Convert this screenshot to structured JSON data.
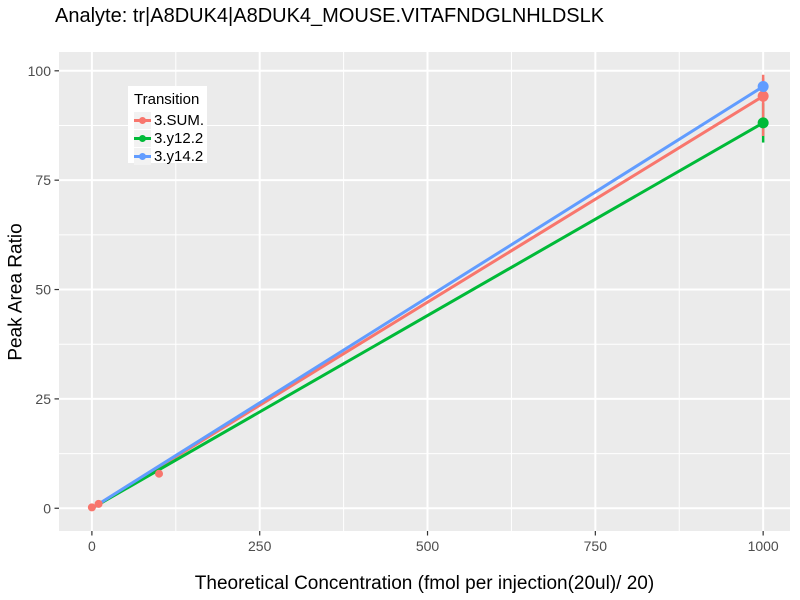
{
  "title": "Analyte: tr|A8DUK4|A8DUK4_MOUSE.VITAFNDGLNHLDSLK",
  "colors": {
    "panel_bg": "#EBEBEB",
    "grid": "#FFFFFF",
    "tick_mark": "#333333",
    "tick_label": "#4D4D4D",
    "legend_key_bg": "#F2F2F2"
  },
  "chart_data": {
    "type": "scatter",
    "title": "Analyte: tr|A8DUK4|A8DUK4_MOUSE.VITAFNDGLNHLDSLK",
    "xlabel": "Theoretical Concentration (fmol per injection(20ul)/ 20)",
    "ylabel": "Peak Area Ratio",
    "xlim": [
      -49,
      1040
    ],
    "ylim": [
      -5.2,
      104.3
    ],
    "x_ticks": [
      0,
      250,
      500,
      750,
      1000
    ],
    "x_tick_labels": [
      "0",
      "250",
      "500",
      "750",
      "1000"
    ],
    "y_ticks": [
      0,
      25,
      50,
      75,
      100
    ],
    "y_tick_labels": [
      "0",
      "25",
      "50",
      "75",
      "100"
    ],
    "x_minor_ticks": [
      125,
      375,
      625,
      875
    ],
    "y_minor_ticks": [
      12.5,
      37.5,
      62.5,
      87.5
    ],
    "grid": "on",
    "legend_position": "inside-top-left",
    "legend_title": "Transition",
    "series": [
      {
        "name": "3.SUM.",
        "color": "#F8766D",
        "points": [
          [
            0,
            0.2
          ],
          [
            10,
            1.0
          ],
          [
            100,
            7.9
          ],
          [
            1000,
            94.2
          ]
        ],
        "fit_line": {
          "x": [
            0,
            1000
          ],
          "y": [
            0,
            94.2
          ]
        },
        "error_bar": {
          "x": 1000,
          "ymin": 85.1,
          "ymax": 99.1
        }
      },
      {
        "name": "3.y12.2",
        "color": "#00BA38",
        "points": [
          [
            1000,
            88.1
          ]
        ],
        "fit_line": {
          "x": [
            0,
            1000
          ],
          "y": [
            0,
            88.1
          ]
        },
        "error_bar": {
          "x": 1000,
          "ymin": 83.6,
          "ymax": 92.6
        }
      },
      {
        "name": "3.y14.2",
        "color": "#619CFF",
        "points": [
          [
            1000,
            96.4
          ]
        ],
        "fit_line": {
          "x": [
            0,
            1000
          ],
          "y": [
            0,
            96.4
          ]
        },
        "error_bar": {
          "x": 1000,
          "ymin": 94.5,
          "ymax": 98.3
        }
      }
    ]
  }
}
